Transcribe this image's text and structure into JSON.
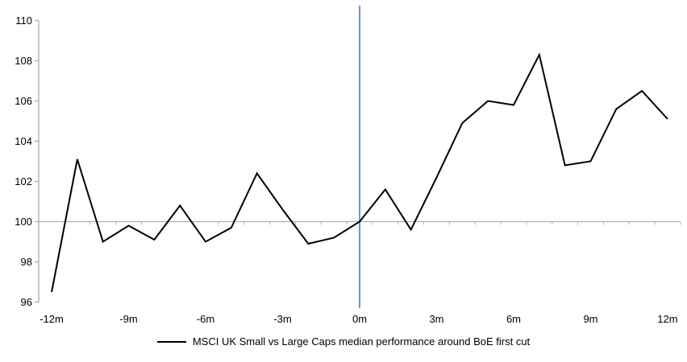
{
  "chart_data": {
    "type": "line",
    "legend": "MSCI UK Small vs Large Caps median performance around BoE first cut",
    "legend_position": "bottom",
    "months": [
      -12,
      -11,
      -10,
      -9,
      -8,
      -7,
      -6,
      -5,
      -4,
      -3,
      -2,
      -1,
      0,
      1,
      2,
      3,
      4,
      5,
      6,
      7,
      8,
      9,
      10,
      11,
      12
    ],
    "values": [
      96.5,
      103.1,
      99.0,
      99.8,
      99.1,
      100.8,
      99.0,
      99.7,
      102.4,
      100.6,
      98.9,
      99.2,
      100.0,
      101.6,
      99.6,
      102.2,
      104.9,
      106.0,
      105.8,
      108.3,
      102.8,
      103.0,
      105.6,
      106.5,
      105.1
    ],
    "x_ticks": [
      {
        "pos": -12,
        "label": "-12m"
      },
      {
        "pos": -9,
        "label": "-9m"
      },
      {
        "pos": -6,
        "label": "-6m"
      },
      {
        "pos": -3,
        "label": "-3m"
      },
      {
        "pos": 0,
        "label": "0m"
      },
      {
        "pos": 3,
        "label": "3m"
      },
      {
        "pos": 6,
        "label": "6m"
      },
      {
        "pos": 9,
        "label": "9m"
      },
      {
        "pos": 12,
        "label": "12m"
      }
    ],
    "y_ticks": [
      96,
      98,
      100,
      102,
      104,
      106,
      108,
      110
    ],
    "ylim": [
      96,
      110
    ],
    "xlim": [
      -12.5,
      12.5
    ],
    "baseline": 100,
    "event_line_month": 0,
    "grid": "baseline-only",
    "colors": {
      "series": "#000000",
      "axis": "#a6a6a6",
      "baseline": "#b0b0b0",
      "event_line": "#4f86c6"
    }
  }
}
